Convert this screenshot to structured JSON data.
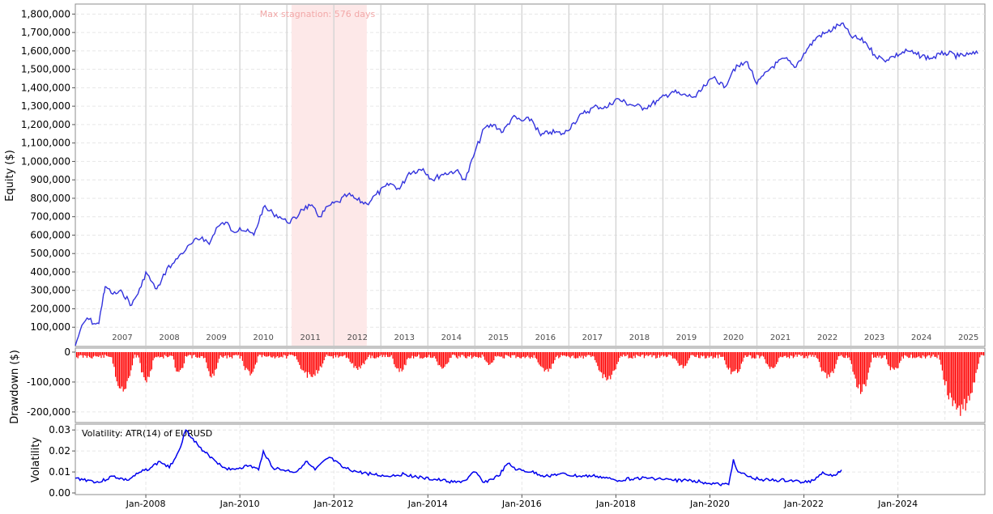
{
  "chart_data": [
    {
      "type": "line",
      "ylabel": "Equity ($)",
      "annotation": "Max stagnation: 576 days",
      "stagnation_years": [
        2011.1,
        2012.7
      ],
      "ylim": [
        0,
        1850000
      ],
      "yticks": [
        "100,000",
        "200,000",
        "300,000",
        "400,000",
        "500,000",
        "600,000",
        "700,000",
        "800,000",
        "900,000",
        "1,000,000",
        "1,100,000",
        "1,200,000",
        "1,300,000",
        "1,400,000",
        "1,500,000",
        "1,600,000",
        "1,700,000",
        "1,800,000"
      ],
      "year_labels": [
        "2007",
        "2008",
        "2009",
        "2010",
        "2011",
        "2012",
        "2013",
        "2014",
        "2015",
        "2016",
        "2017",
        "2018",
        "2019",
        "2020",
        "2021",
        "2022",
        "2023",
        "2024",
        "2025"
      ],
      "line_color": "#3333dd",
      "stagnation_color": "#fde8e8",
      "series": [
        {
          "x": [
            2006.5,
            2006.6,
            2006.75,
            2006.9,
            2007.0,
            2007.1,
            2007.15,
            2007.3,
            2007.5,
            2007.7,
            2007.9,
            2008.0,
            2008.2,
            2008.3,
            2008.45,
            2008.6,
            2008.75,
            2008.85,
            2009.0,
            2009.2,
            2009.35,
            2009.5,
            2009.7,
            2009.85,
            2010.0,
            2010.3,
            2010.5,
            2010.7,
            2010.85,
            2011.0,
            2011.2,
            2011.3,
            2011.5,
            2011.7,
            2011.9,
            2012.1,
            2012.3,
            2012.5,
            2012.7,
            2012.9,
            2013.2,
            2013.4,
            2013.6,
            2013.9,
            2014.1,
            2014.3,
            2014.6,
            2014.8,
            2015.0,
            2015.2,
            2015.4,
            2015.6,
            2015.8,
            2016.0,
            2016.2,
            2016.4,
            2016.6,
            2016.9,
            2017.1,
            2017.3,
            2017.6,
            2017.8,
            2018.0,
            2018.3,
            2018.6,
            2018.9,
            2019.2,
            2019.4,
            2019.7,
            2019.9,
            2020.1,
            2020.3,
            2020.5,
            2020.8,
            2021.0,
            2021.3,
            2021.6,
            2021.8,
            2022.1,
            2022.3,
            2022.5,
            2022.8,
            2023.0,
            2023.3,
            2023.5,
            2023.7,
            2023.9,
            2024.2,
            2024.4,
            2024.7,
            2024.9,
            2025.0,
            2025.3,
            2025.5,
            2025.7
          ],
          "y": [
            0,
            80000,
            150000,
            120000,
            120000,
            280000,
            320000,
            280000,
            290000,
            220000,
            320000,
            400000,
            310000,
            330000,
            420000,
            450000,
            500000,
            520000,
            560000,
            590000,
            550000,
            640000,
            670000,
            620000,
            640000,
            600000,
            750000,
            720000,
            700000,
            670000,
            690000,
            740000,
            760000,
            700000,
            760000,
            780000,
            820000,
            790000,
            770000,
            820000,
            880000,
            850000,
            940000,
            960000,
            900000,
            930000,
            950000,
            900000,
            1050000,
            1180000,
            1200000,
            1160000,
            1240000,
            1220000,
            1230000,
            1140000,
            1160000,
            1150000,
            1210000,
            1260000,
            1300000,
            1290000,
            1340000,
            1310000,
            1290000,
            1330000,
            1380000,
            1360000,
            1350000,
            1410000,
            1460000,
            1400000,
            1500000,
            1540000,
            1420000,
            1510000,
            1560000,
            1510000,
            1620000,
            1680000,
            1700000,
            1750000,
            1680000,
            1650000,
            1580000,
            1550000,
            1570000,
            1600000,
            1580000,
            1560000,
            1580000,
            1590000,
            1570000,
            1580000,
            1585000
          ]
        }
      ]
    },
    {
      "type": "bar",
      "ylabel": "Drawdown ($)",
      "ylim": [
        -230000,
        0
      ],
      "yticks": [
        "0",
        "-100,000",
        "-200,000"
      ],
      "bar_color": "#ff0000",
      "dips": [
        {
          "x": 2007.5,
          "depth": 140000,
          "width": 0.5
        },
        {
          "x": 2008.0,
          "depth": 110000,
          "width": 0.35
        },
        {
          "x": 2008.7,
          "depth": 80000,
          "width": 0.3
        },
        {
          "x": 2009.4,
          "depth": 90000,
          "width": 0.35
        },
        {
          "x": 2010.2,
          "depth": 80000,
          "width": 0.4
        },
        {
          "x": 2011.5,
          "depth": 90000,
          "width": 0.7
        },
        {
          "x": 2012.5,
          "depth": 60000,
          "width": 0.5
        },
        {
          "x": 2013.4,
          "depth": 70000,
          "width": 0.4
        },
        {
          "x": 2014.3,
          "depth": 60000,
          "width": 0.4
        },
        {
          "x": 2015.3,
          "depth": 50000,
          "width": 0.3
        },
        {
          "x": 2016.5,
          "depth": 70000,
          "width": 0.5
        },
        {
          "x": 2017.8,
          "depth": 100000,
          "width": 0.6
        },
        {
          "x": 2019.4,
          "depth": 55000,
          "width": 0.4
        },
        {
          "x": 2020.5,
          "depth": 80000,
          "width": 0.5
        },
        {
          "x": 2021.3,
          "depth": 60000,
          "width": 0.4
        },
        {
          "x": 2022.5,
          "depth": 90000,
          "width": 0.5
        },
        {
          "x": 2023.2,
          "depth": 140000,
          "width": 0.5
        },
        {
          "x": 2023.9,
          "depth": 70000,
          "width": 0.4
        },
        {
          "x": 2025.3,
          "depth": 215000,
          "width": 0.9
        }
      ]
    },
    {
      "type": "line",
      "ylabel": "Volatility",
      "legend": "Volatility: ATR(14) of EURUSD",
      "ylim": [
        0,
        0.032
      ],
      "yticks": [
        "0.00",
        "0.01",
        "0.02",
        "0.03"
      ],
      "xticks": [
        "Jan-2008",
        "Jan-2010",
        "Jan-2012",
        "Jan-2014",
        "Jan-2016",
        "Jan-2018",
        "Jan-2020",
        "Jan-2022",
        "Jan-2024"
      ],
      "line_color": "#0000ee",
      "series": [
        {
          "x": [
            2006.5,
            2006.8,
            2007.0,
            2007.3,
            2007.6,
            2007.9,
            2008.1,
            2008.3,
            2008.5,
            2008.7,
            2008.85,
            2009.0,
            2009.2,
            2009.4,
            2009.6,
            2009.8,
            2010.0,
            2010.2,
            2010.4,
            2010.5,
            2010.7,
            2010.9,
            2011.2,
            2011.4,
            2011.6,
            2011.9,
            2012.2,
            2012.5,
            2012.8,
            2013.1,
            2013.5,
            2013.9,
            2014.3,
            2014.6,
            2014.8,
            2015.0,
            2015.2,
            2015.5,
            2015.7,
            2015.9,
            2016.2,
            2016.5,
            2016.8,
            2017.2,
            2017.6,
            2018.0,
            2018.4,
            2018.8,
            2019.2,
            2019.6,
            2019.9,
            2020.2,
            2020.4,
            2020.5,
            2020.6,
            2020.9,
            2021.3,
            2021.7,
            2022.0,
            2022.2,
            2022.4,
            2022.6,
            2022.8
          ],
          "y": [
            0.007,
            0.006,
            0.005,
            0.008,
            0.006,
            0.01,
            0.012,
            0.015,
            0.012,
            0.02,
            0.03,
            0.026,
            0.02,
            0.017,
            0.013,
            0.011,
            0.012,
            0.013,
            0.011,
            0.02,
            0.012,
            0.011,
            0.01,
            0.015,
            0.011,
            0.017,
            0.012,
            0.01,
            0.009,
            0.008,
            0.009,
            0.007,
            0.006,
            0.005,
            0.006,
            0.01,
            0.005,
            0.008,
            0.014,
            0.011,
            0.01,
            0.008,
            0.009,
            0.008,
            0.008,
            0.006,
            0.007,
            0.007,
            0.006,
            0.006,
            0.005,
            0.004,
            0.004,
            0.016,
            0.01,
            0.007,
            0.006,
            0.006,
            0.005,
            0.006,
            0.01,
            0.008,
            0.011
          ]
        }
      ]
    }
  ]
}
